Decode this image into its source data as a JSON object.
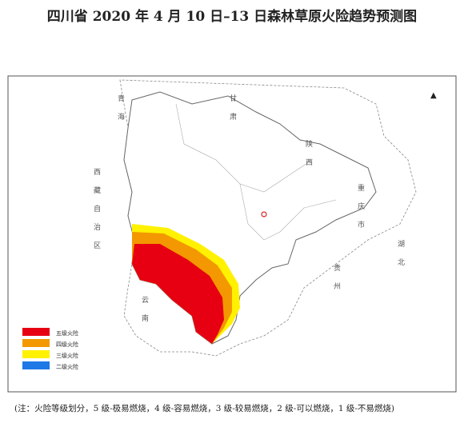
{
  "title": "四川省 2020 年 4 月 10 日–13 日森林草原火险趋势预测图",
  "legend": [
    {
      "label": "五级火险",
      "color": "#e60012"
    },
    {
      "label": "四级火险",
      "color": "#f39800"
    },
    {
      "label": "三级火险",
      "color": "#fff100"
    },
    {
      "label": "二级火险",
      "color": "#1e78e6"
    }
  ],
  "regions": [
    "青海",
    "甘肃",
    "陕西",
    "西藏自治区",
    "重庆市",
    "贵州",
    "云南",
    "湖北"
  ],
  "note": "(注：火险等级划分，5 级-极易燃烧，4 级-容易燃烧，3 级-较易燃烧，2 级-可以燃烧，1 级-不易燃烧)"
}
